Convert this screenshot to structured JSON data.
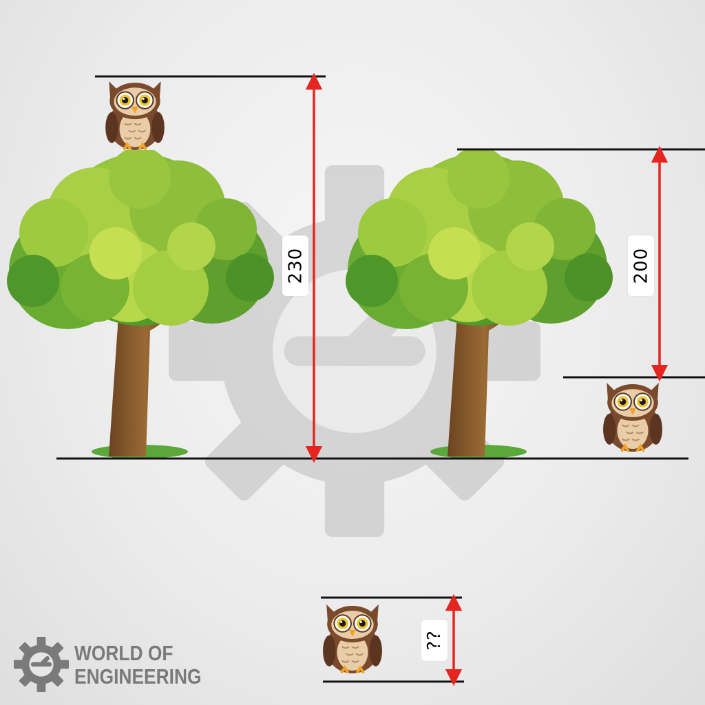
{
  "measurements": {
    "tree_with_owl_on_top": "230",
    "tree_with_owl_beside": "200",
    "owl_alone": "??"
  },
  "brand": {
    "line1": "WORLD OF",
    "line2": "ENGINEERING"
  },
  "colors": {
    "arrow": "#e52620",
    "line": "#111111",
    "watermark": "#c9c9c9",
    "brand_text": "#7a7a7a"
  },
  "icons": [
    "gear-watermark-icon",
    "tree-icon",
    "owl-icon",
    "gear-logo-icon"
  ]
}
